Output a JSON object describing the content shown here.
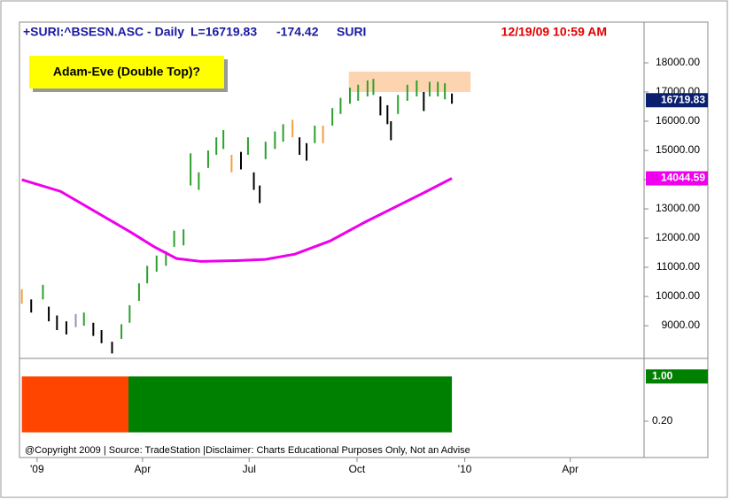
{
  "chart_data": {
    "type": "ohlc",
    "header": {
      "symbol": "+SURI:^BSESN.ASC - Daily",
      "last": "L=16719.83",
      "change": "-174.42",
      "source": "SURI",
      "timestamp": "12/19/09 10:59 AM"
    },
    "annotation": "Adam-Eve (Double Top)?",
    "copyright": "@Copyright 2009 | Source: TradeStation |Disclaimer: Charts Educational Purposes Only, Not an Advise",
    "x": [
      -13,
      -5,
      5,
      10,
      17,
      25,
      33,
      40,
      48,
      55,
      64,
      72,
      79,
      87,
      94,
      102,
      110,
      117,
      125,
      131,
      138,
      146,
      153,
      159,
      166,
      174,
      180,
      185,
      190,
      195,
      203,
      210,
      218,
      224,
      230,
      237,
      244,
      252,
      259,
      267,
      274,
      282,
      287,
      293,
      299,
      302,
      308,
      316,
      324,
      330,
      335,
      342,
      348,
      354
    ],
    "series": [
      {
        "name": "BSESN",
        "high": [
          10250,
          9900,
          10400,
          9650,
          9350,
          9150,
          9400,
          9450,
          9100,
          8850,
          8450,
          9050,
          9700,
          10450,
          11050,
          11400,
          11550,
          12250,
          12300,
          14900,
          14250,
          15000,
          15450,
          15700,
          14850,
          14950,
          15450,
          14250,
          13800,
          15300,
          15650,
          15900,
          16050,
          15450,
          15250,
          15850,
          15850,
          16450,
          16800,
          17150,
          17250,
          17400,
          17450,
          16850,
          16550,
          16000,
          16900,
          17250,
          17400,
          17000,
          17350,
          17350,
          17300,
          16950
        ],
        "low": [
          9750,
          9450,
          9900,
          9150,
          8850,
          8700,
          8950,
          9000,
          8650,
          8400,
          8050,
          8550,
          9100,
          9850,
          10450,
          10850,
          11050,
          11700,
          11750,
          13800,
          13650,
          14400,
          14850,
          15050,
          14250,
          14350,
          14850,
          13650,
          13200,
          14700,
          15050,
          15300,
          15450,
          14850,
          14650,
          15250,
          15250,
          15850,
          16250,
          16600,
          16700,
          16850,
          16900,
          16200,
          15900,
          15350,
          16250,
          16700,
          16850,
          16350,
          16850,
          16850,
          16750,
          16600
        ],
        "bar_colors": [
          "#f0a040",
          "#000000",
          "#2ca02c",
          "#000000",
          "#000000",
          "#000000",
          "#9090c0",
          "#2ca02c",
          "#000000",
          "#000000",
          "#000000",
          "#2ca02c",
          "#2ca02c",
          "#2ca02c",
          "#2ca02c",
          "#2ca02c",
          "#2ca02c",
          "#2ca02c",
          "#2ca02c",
          "#2ca02c",
          "#2ca02c",
          "#2ca02c",
          "#2ca02c",
          "#2ca02c",
          "#f0a040",
          "#000000",
          "#2ca02c",
          "#000000",
          "#000000",
          "#2ca02c",
          "#2ca02c",
          "#2ca02c",
          "#f0a040",
          "#000000",
          "#000000",
          "#2ca02c",
          "#f0a040",
          "#2ca02c",
          "#2ca02c",
          "#2ca02c",
          "#2ca02c",
          "#2ca02c",
          "#2ca02c",
          "#000000",
          "#000000",
          "#000000",
          "#2ca02c",
          "#2ca02c",
          "#2ca02c",
          "#000000",
          "#2ca02c",
          "#2ca02c",
          "#2ca02c",
          "#000000"
        ],
        "last": 16719.83,
        "last_color": "#0a1f6e"
      },
      {
        "name": "MA",
        "color": "#ee00ee",
        "x": [
          -13,
          20,
          50,
          80,
          100,
          119,
          140,
          170,
          195,
          220,
          250,
          280,
          310,
          330,
          354
        ],
        "values": [
          14000,
          13600,
          12900,
          12200,
          11700,
          11300,
          11200,
          11230,
          11270,
          11450,
          11900,
          12550,
          13150,
          13550,
          14044.59
        ]
      }
    ],
    "highlight": {
      "x": [
        266,
        370
      ],
      "y": [
        17000,
        17700
      ],
      "color": "#fcd5b0"
    },
    "xlim": [
      -15,
      518
    ],
    "xticks": [
      {
        "value": 0,
        "label": "'09"
      },
      {
        "value": 90,
        "label": "Apr"
      },
      {
        "value": 181,
        "label": "Jul"
      },
      {
        "value": 273,
        "label": "Oct"
      },
      {
        "value": 365,
        "label": "'10"
      },
      {
        "value": 455,
        "label": "Apr"
      }
    ],
    "ylim": [
      7880,
      19394
    ],
    "yticks": [
      {
        "value": 9000,
        "label": "9000.00"
      },
      {
        "value": 10000,
        "label": "10000.00"
      },
      {
        "value": 11000,
        "label": "11000.00"
      },
      {
        "value": 12000,
        "label": "12000.00"
      },
      {
        "value": 13000,
        "label": "13000.00"
      },
      {
        "value": 14000,
        "label": "14000.00"
      },
      {
        "value": 15000,
        "label": "15000.00"
      },
      {
        "value": 16000,
        "label": "16000.00"
      },
      {
        "value": 17000,
        "label": "17000.00"
      },
      {
        "value": 18000,
        "label": "18000.00"
      }
    ],
    "indicator": {
      "ylim": [
        -0.45,
        1.275
      ],
      "yticks": [
        {
          "value": 0.2,
          "label": "0.20"
        }
      ],
      "last": {
        "value": 1,
        "label": "1.00"
      },
      "last_color": "#008000",
      "segments": [
        {
          "from": -13,
          "to": 78,
          "value": 1,
          "color": "#ff4500"
        },
        {
          "from": 78,
          "to": 354,
          "value": 1,
          "color": "#008000"
        }
      ]
    }
  }
}
